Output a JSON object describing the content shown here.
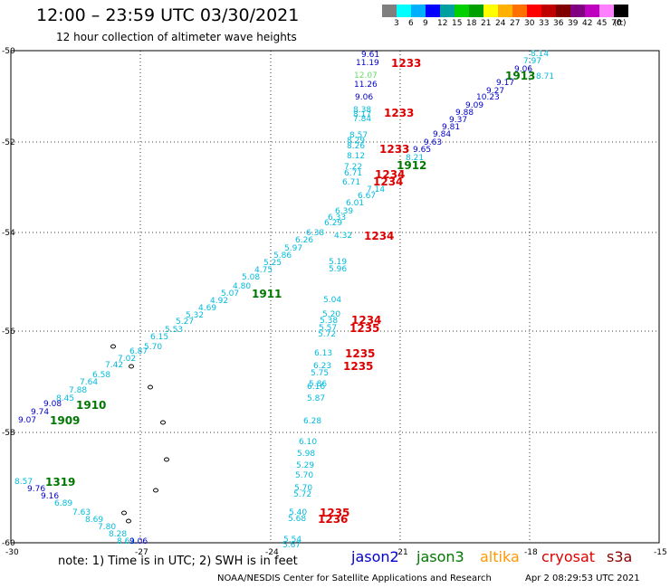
{
  "header": {
    "title": "12:00 – 23:59 UTC 03/30/2021",
    "subtitle": "12 hour collection of altimeter wave heights"
  },
  "legend": {
    "colors": [
      "#7f7f7f",
      "#00ffff",
      "#00b0ff",
      "#0000ff",
      "#00a0a0",
      "#00d000",
      "#00a000",
      "#ffff00",
      "#ffb000",
      "#ff7000",
      "#ff0000",
      "#c00000",
      "#800000",
      "#800080",
      "#c000c0",
      "#ff80ff",
      "#000000"
    ],
    "labels": [
      "3",
      "6",
      "9",
      "12",
      "15",
      "18",
      "21",
      "24",
      "27",
      "30",
      "33",
      "36",
      "39",
      "42",
      "45",
      "70",
      "(ft)"
    ]
  },
  "axes": {
    "lon_ticks": [
      "-30",
      "-27",
      "-24",
      "-21",
      "-18",
      "-15"
    ],
    "lat_ticks": [
      "-50",
      "-52",
      "-54",
      "-56",
      "-58",
      "-60"
    ]
  },
  "colors": {
    "jason2": "#0000cc",
    "jason3": "#007700",
    "altika": "#ff9900",
    "cryosat": "#dd0000",
    "s3a": "#880000",
    "value": "#00bbdd"
  },
  "labels": [
    {
      "t": "9.61",
      "c": "jason2"
    },
    {
      "t": "11.19",
      "c": "jason2"
    },
    {
      "t": "1233",
      "c": "cryosat"
    },
    {
      "t": "12.07",
      "c": "green"
    },
    {
      "t": "11.26",
      "c": "jason2"
    },
    {
      "t": "9.06",
      "c": "jason2"
    },
    {
      "t": "8.38",
      "c": "value"
    },
    {
      "t": "8.17",
      "c": "value"
    },
    {
      "t": "7.84",
      "c": "value"
    },
    {
      "t": "1233",
      "c": "cryosat"
    },
    {
      "t": "8.57",
      "c": "value"
    },
    {
      "t": "8.29",
      "c": "value"
    },
    {
      "t": "8.26",
      "c": "value"
    },
    {
      "t": "8.12",
      "c": "value"
    },
    {
      "t": "1233",
      "c": "cryosat"
    },
    {
      "t": "7.22",
      "c": "value"
    },
    {
      "t": "6.71",
      "c": "value"
    },
    {
      "t": "6.71",
      "c": "value"
    },
    {
      "t": "1234",
      "c": "cryosat"
    },
    {
      "t": "1234",
      "c": "cryosat"
    },
    {
      "t": "7.14",
      "c": "value"
    },
    {
      "t": "6.67",
      "c": "value"
    },
    {
      "t": "6.01",
      "c": "value"
    },
    {
      "t": "6.39",
      "c": "value"
    },
    {
      "t": "6.33",
      "c": "value"
    },
    {
      "t": "6.29",
      "c": "value"
    },
    {
      "t": "4.32",
      "c": "value"
    },
    {
      "t": "1234",
      "c": "cryosat"
    },
    {
      "t": "6.38",
      "c": "value"
    },
    {
      "t": "6.26",
      "c": "value"
    },
    {
      "t": "5.97",
      "c": "value"
    },
    {
      "t": "5.86",
      "c": "value"
    },
    {
      "t": "5.25",
      "c": "value"
    },
    {
      "t": "4.75",
      "c": "value"
    },
    {
      "t": "5.08",
      "c": "value"
    },
    {
      "t": "4.80",
      "c": "value"
    },
    {
      "t": "1911",
      "c": "jason3"
    },
    {
      "t": "5.07",
      "c": "value"
    },
    {
      "t": "4.92",
      "c": "value"
    },
    {
      "t": "4.69",
      "c": "value"
    },
    {
      "t": "5.32",
      "c": "value"
    },
    {
      "t": "5.27",
      "c": "value"
    },
    {
      "t": "5.53",
      "c": "value"
    },
    {
      "t": "5.19",
      "c": "value"
    },
    {
      "t": "5.96",
      "c": "value"
    },
    {
      "t": "5.04",
      "c": "value"
    },
    {
      "t": "5.20",
      "c": "value"
    },
    {
      "t": "1234",
      "c": "cryosat"
    },
    {
      "t": "5.38",
      "c": "value"
    },
    {
      "t": "1235",
      "c": "cryosat"
    },
    {
      "t": "5.57",
      "c": "value"
    },
    {
      "t": "5.72",
      "c": "value"
    },
    {
      "t": "6.15",
      "c": "value"
    },
    {
      "t": "5.70",
      "c": "value"
    },
    {
      "t": "6.87",
      "c": "value"
    },
    {
      "t": "7.02",
      "c": "value"
    },
    {
      "t": "7.42",
      "c": "value"
    },
    {
      "t": "6.58",
      "c": "value"
    },
    {
      "t": "7.64",
      "c": "value"
    },
    {
      "t": "7.88",
      "c": "value"
    },
    {
      "t": "8.45",
      "c": "value"
    },
    {
      "t": "9.08",
      "c": "jason2"
    },
    {
      "t": "1910",
      "c": "jason3"
    },
    {
      "t": "9.74",
      "c": "jason2"
    },
    {
      "t": "9.07",
      "c": "jason2"
    },
    {
      "t": "1909",
      "c": "jason3"
    },
    {
      "t": "6.13",
      "c": "value"
    },
    {
      "t": "1235",
      "c": "cryosat"
    },
    {
      "t": "6.23",
      "c": "value"
    },
    {
      "t": "1235",
      "c": "cryosat"
    },
    {
      "t": "5.75",
      "c": "value"
    },
    {
      "t": "5.86",
      "c": "value"
    },
    {
      "t": "6.16",
      "c": "value"
    },
    {
      "t": "5.87",
      "c": "value"
    },
    {
      "t": "6.28",
      "c": "value"
    },
    {
      "t": "6.10",
      "c": "value"
    },
    {
      "t": "5.98",
      "c": "value"
    },
    {
      "t": "5.29",
      "c": "value"
    },
    {
      "t": "5.70",
      "c": "value"
    },
    {
      "t": "5.70",
      "c": "value"
    },
    {
      "t": "5.72",
      "c": "value"
    },
    {
      "t": "5.40",
      "c": "value"
    },
    {
      "t": "1235",
      "c": "cryosat"
    },
    {
      "t": "5.68",
      "c": "value"
    },
    {
      "t": "1236",
      "c": "cryosat"
    },
    {
      "t": "5.54",
      "c": "value"
    },
    {
      "t": "5.67",
      "c": "value"
    },
    {
      "t": "8.57",
      "c": "value"
    },
    {
      "t": "1319",
      "c": "jason3"
    },
    {
      "t": "9.76",
      "c": "jason2"
    },
    {
      "t": "9.16",
      "c": "jason2"
    },
    {
      "t": "6.89",
      "c": "value"
    },
    {
      "t": "7.63",
      "c": "value"
    },
    {
      "t": "8.69",
      "c": "value"
    },
    {
      "t": "7.80",
      "c": "value"
    },
    {
      "t": "8.28",
      "c": "value"
    },
    {
      "t": "8.61",
      "c": "value"
    },
    {
      "t": "9.06",
      "c": "jason2"
    },
    {
      "t": "8.14",
      "c": "value"
    },
    {
      "t": "7.97",
      "c": "value"
    },
    {
      "t": "9.06",
      "c": "jason2"
    },
    {
      "t": "1913",
      "c": "jason3"
    },
    {
      "t": "8.71",
      "c": "value"
    },
    {
      "t": "9.17",
      "c": "jason2"
    },
    {
      "t": "9.27",
      "c": "jason2"
    },
    {
      "t": "10.23",
      "c": "jason2"
    },
    {
      "t": "9.09",
      "c": "jason2"
    },
    {
      "t": "9.88",
      "c": "jason2"
    },
    {
      "t": "9.37",
      "c": "jason2"
    },
    {
      "t": "9.81",
      "c": "jason2"
    },
    {
      "t": "9.84",
      "c": "jason2"
    },
    {
      "t": "9.63",
      "c": "jason2"
    },
    {
      "t": "9.65",
      "c": "jason2"
    },
    {
      "t": "8.21",
      "c": "value"
    },
    {
      "t": "1912",
      "c": "jason3"
    }
  ],
  "footer": {
    "note": "note:  1) Time is in UTC;  2) SWH is in feet",
    "satellites": [
      {
        "name": "jason2",
        "color": "#0000cc"
      },
      {
        "name": "jason3",
        "color": "#007700"
      },
      {
        "name": "altika",
        "color": "#ff9900"
      },
      {
        "name": "cryosat",
        "color": "#dd0000"
      },
      {
        "name": "s3a",
        "color": "#880000"
      }
    ],
    "credit": "NOAA/NESDIS Center for Satellite Applications and Research",
    "timestamp": "Apr  2 08:29:53 UTC 2021"
  }
}
